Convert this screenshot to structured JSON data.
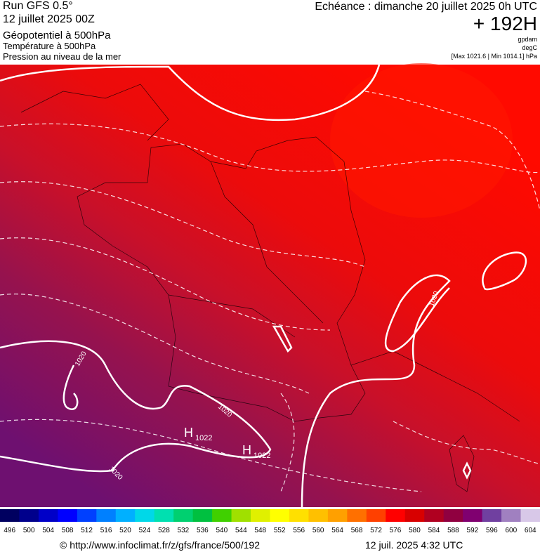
{
  "header": {
    "run": "Run GFS 0.5°",
    "date": "12 juillet 2025 00Z",
    "field1": "Géopotentiel à 500hPa",
    "field2": "Température à 500hPa",
    "field3": "Pression au niveau de la mer",
    "echeance": "Echéance : dimanche 20 juillet 2025 0h UTC",
    "lead": "+ 192H",
    "unit1": "gpdam",
    "unit2": "degC",
    "unit3": "[Max 1021.6 | Min 1014.1] hPa"
  },
  "map": {
    "contour_labels": [
      "1020",
      "1020",
      "1020",
      "1020"
    ],
    "highs": [
      {
        "label": "H",
        "value": "1022"
      },
      {
        "label": "H",
        "value": "1022"
      }
    ]
  },
  "colorbar": {
    "labels": [
      496,
      500,
      504,
      508,
      512,
      516,
      520,
      524,
      528,
      532,
      536,
      540,
      544,
      548,
      552,
      556,
      560,
      564,
      568,
      572,
      576,
      580,
      584,
      588,
      592,
      596,
      600,
      604
    ],
    "colors": [
      "#000060",
      "#00008c",
      "#0000c8",
      "#0000ff",
      "#0040ff",
      "#0080ff",
      "#00b0ff",
      "#00d8e8",
      "#00e0b0",
      "#00d070",
      "#00c040",
      "#40d000",
      "#a0e000",
      "#e0f000",
      "#ffff00",
      "#ffe000",
      "#ffc000",
      "#ffa000",
      "#ff7000",
      "#ff4000",
      "#ff0000",
      "#d80000",
      "#b00020",
      "#900040",
      "#800070",
      "#7040a0",
      "#a080c0",
      "#d8c8e8"
    ]
  },
  "footer": {
    "url": "© http://www.infoclimat.fr/z/gfs/france/500/192",
    "timestamp": "12 juil. 2025  4:32 UTC"
  }
}
